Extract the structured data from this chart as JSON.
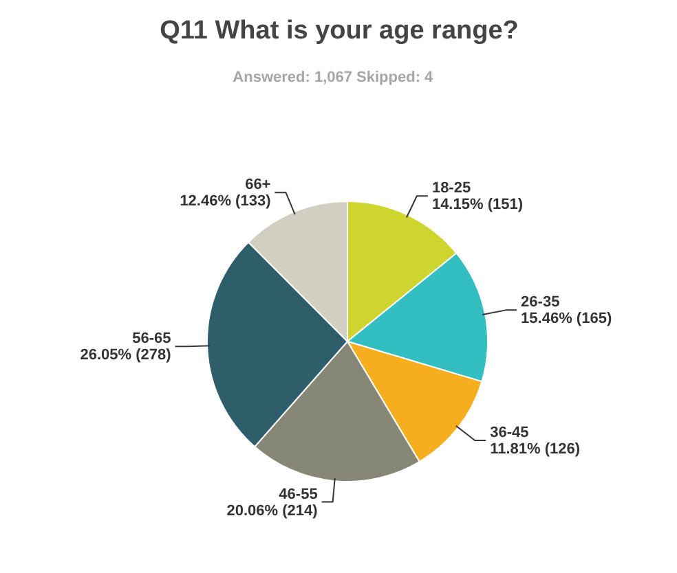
{
  "chart_data": {
    "type": "pie",
    "title": "Q11 What is your age range?",
    "subtitle": "Answered: 1,067    Skipped: 4",
    "categories": [
      "18-25",
      "26-35",
      "36-45",
      "46-55",
      "56-65",
      "66+"
    ],
    "values": [
      151,
      165,
      126,
      214,
      278,
      133
    ],
    "value_labels": [
      "14.15% (151)",
      "15.46% (165)",
      "11.81% (126)",
      "20.06% (214)",
      "26.05% (278)",
      "12.46% (133)"
    ],
    "colors": [
      "#cdd52e",
      "#33bfc1",
      "#f6ae1f",
      "#868776",
      "#2e5e6a",
      "#d0cfc2"
    ]
  }
}
